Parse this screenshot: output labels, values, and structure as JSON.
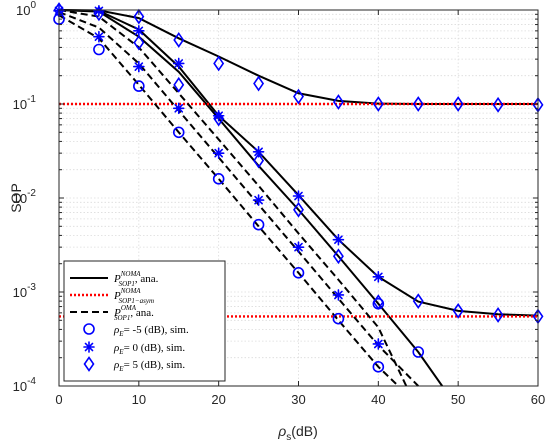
{
  "chart_data": {
    "type": "line",
    "ylabel": "SOP",
    "xlabel_main": "ρ",
    "xlabel_sub": "s",
    "xlabel_unit": "(dB)",
    "x_ticks": [
      "0",
      "10",
      "20",
      "30",
      "40",
      "50",
      "60"
    ],
    "y_ticks": [
      {
        "base": "10",
        "exp": "-4"
      },
      {
        "base": "10",
        "exp": "-3"
      },
      {
        "base": "10",
        "exp": "-2"
      },
      {
        "base": "10",
        "exp": "-1"
      },
      {
        "base": "10",
        "exp": "0"
      }
    ],
    "xlim": [
      0,
      60
    ],
    "ylim": [
      0.0001,
      1
    ],
    "y_scale": "log",
    "grid": true,
    "legend_position": "bottom-left",
    "colors": {
      "black": "#000000",
      "red": "#ff0000",
      "blue": "#0000ff",
      "grid": "#dcdcdc",
      "axis": "#262626"
    },
    "curves": [
      {
        "style": "solid",
        "color": "#000000",
        "x": [
          0,
          5,
          10,
          15,
          20,
          25,
          30,
          35,
          40,
          45,
          50,
          55,
          60
        ],
        "y": [
          1,
          0.99,
          0.82,
          0.5,
          0.32,
          0.2,
          0.13,
          0.108,
          0.101,
          0.1,
          0.1,
          0.1,
          0.1
        ]
      },
      {
        "style": "solid",
        "color": "#000000",
        "x": [
          0,
          5,
          10,
          15,
          20,
          25,
          30,
          35,
          40,
          45,
          50,
          55,
          60
        ],
        "y": [
          1,
          0.98,
          0.62,
          0.25,
          0.075,
          0.031,
          0.0107,
          0.0036,
          0.00145,
          0.00079,
          0.00063,
          0.00058,
          0.00056
        ]
      },
      {
        "style": "solid",
        "color": "#000000",
        "x": [
          0,
          5,
          10,
          15,
          20,
          25,
          30,
          35,
          40,
          45,
          48
        ],
        "y": [
          1,
          0.96,
          0.52,
          0.22,
          0.07,
          0.022,
          0.0075,
          0.0024,
          0.00075,
          0.00023,
          0.0001
        ]
      },
      {
        "style": "dotted",
        "color": "#ff0000",
        "x": [
          0,
          60
        ],
        "y": [
          0.1,
          0.1
        ]
      },
      {
        "style": "dotted",
        "color": "#ff0000",
        "x": [
          0,
          60
        ],
        "y": [
          0.00055,
          0.00055
        ]
      },
      {
        "style": "dashed",
        "color": "#000000",
        "x": [
          0,
          5,
          10,
          15,
          20,
          25,
          30,
          35,
          40,
          45
        ],
        "y": [
          0.95,
          0.65,
          0.27,
          0.085,
          0.027,
          0.0085,
          0.0027,
          0.00085,
          0.00027,
          0.0001
        ]
      },
      {
        "style": "dashed",
        "color": "#000000",
        "x": [
          0,
          5,
          10,
          15,
          20,
          25,
          30,
          35,
          40,
          42.5
        ],
        "y": [
          0.88,
          0.5,
          0.16,
          0.05,
          0.016,
          0.005,
          0.0016,
          0.0005,
          0.00016,
          0.0001
        ]
      },
      {
        "style": "dashed",
        "color": "#000000",
        "x": [
          0,
          5,
          10,
          15,
          20,
          25,
          30,
          35,
          40,
          43.5
        ],
        "y": [
          1,
          0.85,
          0.4,
          0.13,
          0.042,
          0.0135,
          0.0042,
          0.00135,
          0.00042,
          0.0001
        ]
      }
    ],
    "markers": [
      {
        "marker": "circle",
        "color": "#0000ff",
        "x": [
          0,
          5,
          10,
          15,
          20,
          25,
          30,
          35,
          40
        ],
        "y": [
          0.8,
          0.38,
          0.155,
          0.05,
          0.016,
          0.0052,
          0.0016,
          0.00052,
          0.00016
        ]
      },
      {
        "marker": "circle",
        "color": "#0000ff",
        "x": [
          40,
          45
        ],
        "y": [
          0.00075,
          0.00023
        ]
      },
      {
        "marker": "star",
        "color": "#0000ff",
        "x": [
          0,
          5,
          10,
          15,
          20,
          25,
          30,
          35,
          40
        ],
        "y": [
          0.98,
          0.52,
          0.25,
          0.09,
          0.03,
          0.0095,
          0.003,
          0.00093,
          0.00028
        ]
      },
      {
        "marker": "star",
        "color": "#0000ff",
        "x": [
          5,
          10,
          15,
          20,
          25,
          30,
          35,
          40
        ],
        "y": [
          0.98,
          0.6,
          0.27,
          0.075,
          0.031,
          0.0105,
          0.0036,
          0.00145
        ]
      },
      {
        "marker": "diamond",
        "color": "#0000ff",
        "x": [
          0,
          5,
          10,
          15,
          20,
          25,
          30,
          35,
          40,
          45,
          50,
          55,
          60
        ],
        "y": [
          1,
          0.92,
          0.45,
          0.16,
          0.07,
          0.025,
          0.0075,
          0.0024,
          0.00078,
          0.0008,
          0.00063,
          0.00057,
          0.00055
        ]
      },
      {
        "marker": "diamond",
        "color": "#0000ff",
        "x": [
          10,
          15,
          20,
          25,
          30,
          35,
          40,
          45,
          50,
          55,
          60
        ],
        "y": [
          0.85,
          0.48,
          0.27,
          0.165,
          0.12,
          0.105,
          0.1,
          0.1,
          0.1,
          0.098,
          0.098
        ]
      }
    ],
    "legend": [
      {
        "sym": "solid",
        "main": "P",
        "sup": "NOMA",
        "sub": "SOP1",
        "tail": ", ana."
      },
      {
        "sym": "red-dotted",
        "main": "P",
        "sup": "NOMA",
        "sub": "SOP1−asym",
        "tail": ""
      },
      {
        "sym": "dashed",
        "main": "P",
        "sup": "OMA",
        "sub": "SOP1",
        "tail": ", ana."
      },
      {
        "sym": "circle",
        "main": "ρ",
        "sub": "E",
        "tail": "= -5 (dB), sim."
      },
      {
        "sym": "star",
        "main": "ρ",
        "sub": "E",
        "tail": "= 0 (dB), sim."
      },
      {
        "sym": "diamond",
        "main": "ρ",
        "sub": "E",
        "tail": "= 5 (dB), sim."
      }
    ]
  }
}
